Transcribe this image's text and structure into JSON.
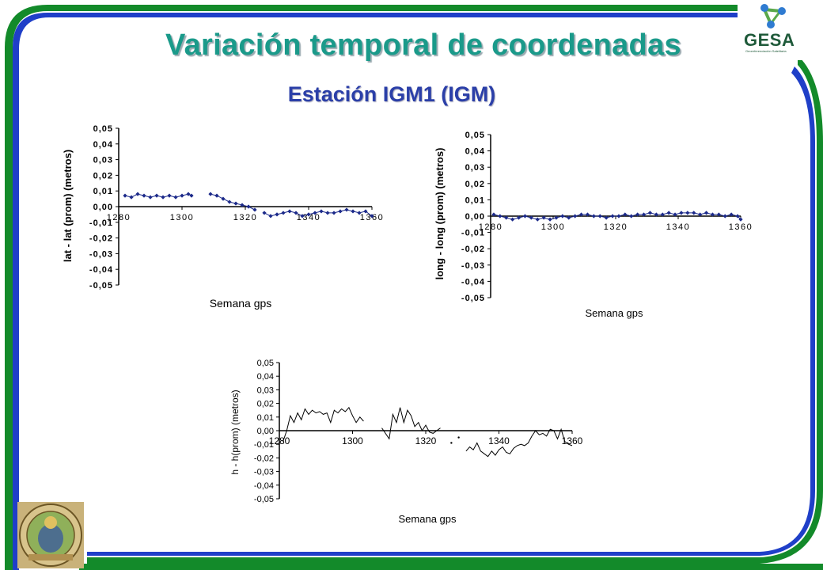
{
  "slide": {
    "title": "Variación temporal de coordenadas",
    "subtitle": "Estación IGM1 (IGM)",
    "logo_text": "GESA",
    "logo_tagline": "Georeferenciación Satelitaria",
    "colors": {
      "title": "#1a9a8a",
      "subtitle": "#2b3fa8",
      "frame_green": "#138a2a",
      "frame_blue": "#1f3fc8",
      "series": "#1c2a8a"
    }
  },
  "chart_data": [
    {
      "type": "scatter",
      "xlabel": "Semana gps",
      "ylabel": "lat - lat (prom) (metros)",
      "xlim": [
        1280,
        1360
      ],
      "ylim": [
        -0.05,
        0.05
      ],
      "x_ticks": [
        "1280",
        "1300",
        "1320",
        "1340",
        "1360"
      ],
      "y_ticks": [
        "0,05",
        "0,04",
        "0,03",
        "0,02",
        "0,01",
        "0,00",
        "-0,01",
        "-0,02",
        "-0,03",
        "-0,04",
        "-0,05"
      ],
      "marker": "diamond",
      "segments": [
        {
          "x": [
            1282,
            1284,
            1286,
            1288,
            1290,
            1292,
            1294,
            1296,
            1298,
            1300,
            1302,
            1303
          ],
          "y": [
            0.007,
            0.006,
            0.008,
            0.007,
            0.006,
            0.007,
            0.006,
            0.007,
            0.006,
            0.007,
            0.008,
            0.007
          ]
        },
        {
          "x": [
            1309,
            1311,
            1313,
            1315,
            1317,
            1319,
            1321,
            1323
          ],
          "y": [
            0.008,
            0.007,
            0.005,
            0.003,
            0.002,
            0.001,
            0.0,
            -0.002
          ]
        },
        {
          "x": [
            1326,
            1328,
            1330,
            1332,
            1334,
            1336,
            1338,
            1340,
            1342,
            1344,
            1346,
            1348,
            1350,
            1352,
            1354,
            1356,
            1358,
            1360
          ],
          "y": [
            -0.004,
            -0.006,
            -0.005,
            -0.004,
            -0.003,
            -0.004,
            -0.006,
            -0.005,
            -0.004,
            -0.003,
            -0.004,
            -0.004,
            -0.003,
            -0.002,
            -0.003,
            -0.004,
            -0.003,
            -0.006
          ]
        }
      ]
    },
    {
      "type": "scatter",
      "xlabel": "Semana gps",
      "ylabel": "long - long (prom) (metros)",
      "xlim": [
        1280,
        1360
      ],
      "ylim": [
        -0.05,
        0.05
      ],
      "x_ticks": [
        "1280",
        "1300",
        "1320",
        "1340",
        "1360"
      ],
      "y_ticks": [
        "0,05",
        "0,04",
        "0,03",
        "0,02",
        "0,01",
        "0,00",
        "-0,01",
        "-0,02",
        "-0,03",
        "-0,04",
        "-0,05"
      ],
      "marker": "diamond",
      "segments": [
        {
          "x": [
            1281,
            1283,
            1285,
            1287,
            1289,
            1291,
            1293,
            1295,
            1297,
            1299,
            1301,
            1303,
            1305,
            1307,
            1309,
            1311,
            1313,
            1315,
            1317,
            1319,
            1321,
            1323,
            1325,
            1327,
            1329,
            1331,
            1333,
            1335,
            1337,
            1339,
            1341,
            1343,
            1345,
            1347,
            1349,
            1351,
            1353,
            1355,
            1357,
            1359,
            1360
          ],
          "y": [
            0.001,
            0.0,
            -0.001,
            -0.002,
            -0.001,
            0.0,
            -0.001,
            -0.002,
            -0.001,
            -0.002,
            -0.001,
            0.0,
            -0.001,
            0.0,
            0.001,
            0.001,
            0.0,
            0.0,
            -0.001,
            0.0,
            0.0,
            0.001,
            0.0,
            0.001,
            0.001,
            0.002,
            0.001,
            0.001,
            0.002,
            0.001,
            0.002,
            0.002,
            0.002,
            0.001,
            0.002,
            0.001,
            0.001,
            0.0,
            0.001,
            0.0,
            -0.002
          ]
        }
      ]
    },
    {
      "type": "line",
      "xlabel": "Semana gps",
      "ylabel": "h - h(prom) (metros)",
      "xlim": [
        1280,
        1360
      ],
      "ylim": [
        -0.05,
        0.05
      ],
      "x_ticks": [
        "1280",
        "1300",
        "1320",
        "1340",
        "1360"
      ],
      "y_ticks": [
        "0,05",
        "0,04",
        "0,03",
        "0,02",
        "0,01",
        "0,00",
        "-0,01",
        "-0,02",
        "-0,03",
        "-0,04",
        "-0,05"
      ],
      "segments": [
        {
          "x": [
            1281,
            1282,
            1283,
            1284,
            1285,
            1286,
            1287,
            1288,
            1289,
            1290,
            1291,
            1292,
            1293,
            1294,
            1295,
            1296,
            1297,
            1298,
            1299,
            1300,
            1301,
            1302,
            1303
          ],
          "y": [
            -0.008,
            0.0,
            0.011,
            0.006,
            0.013,
            0.008,
            0.016,
            0.012,
            0.015,
            0.013,
            0.014,
            0.012,
            0.013,
            0.006,
            0.015,
            0.013,
            0.016,
            0.014,
            0.017,
            0.011,
            0.006,
            0.01,
            0.007
          ]
        },
        {
          "x": [
            1308,
            1310,
            1311,
            1312,
            1313,
            1314,
            1315,
            1316,
            1317,
            1318,
            1319,
            1320,
            1321,
            1322,
            1323,
            1324
          ],
          "y": [
            0.002,
            -0.006,
            0.012,
            0.006,
            0.017,
            0.006,
            0.015,
            0.011,
            0.003,
            0.006,
            0.0,
            0.004,
            -0.001,
            -0.002,
            0.0,
            0.002
          ]
        },
        {
          "x": [
            1327
          ],
          "y": [
            -0.009
          ]
        },
        {
          "x": [
            1329
          ],
          "y": [
            -0.005
          ]
        },
        {
          "x": [
            1331,
            1332,
            1333,
            1334,
            1335,
            1336,
            1337,
            1338,
            1339,
            1340,
            1341,
            1342,
            1343,
            1344,
            1345,
            1346,
            1347,
            1348,
            1349,
            1350,
            1351,
            1352,
            1353,
            1354,
            1355,
            1356,
            1357,
            1358,
            1359,
            1360
          ],
          "y": [
            -0.015,
            -0.012,
            -0.014,
            -0.009,
            -0.015,
            -0.017,
            -0.019,
            -0.015,
            -0.018,
            -0.014,
            -0.012,
            -0.016,
            -0.017,
            -0.013,
            -0.011,
            -0.01,
            -0.011,
            -0.009,
            -0.004,
            0.0,
            -0.003,
            -0.002,
            -0.004,
            0.001,
            0.0,
            -0.006,
            0.001,
            -0.008,
            -0.01,
            -0.011
          ]
        }
      ]
    }
  ]
}
